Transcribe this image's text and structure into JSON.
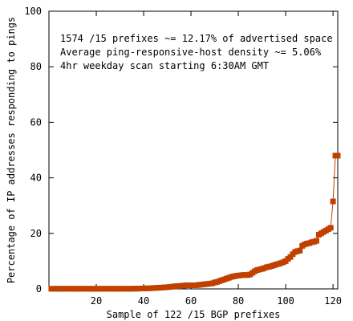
{
  "chart_data": {
    "type": "line",
    "title": "",
    "xlabel": "Sample of 122 /15 BGP prefixes",
    "ylabel": "Percentage of IP addresses responding to pings",
    "xlim": [
      0,
      122
    ],
    "ylim": [
      0,
      100
    ],
    "xticks": [
      "20",
      "40",
      "60",
      "80",
      "100",
      "120"
    ],
    "yticks": [
      "0",
      "20",
      "40",
      "60",
      "80",
      "100"
    ],
    "annotations": [
      "1574 /15 prefixes ~= 12.17% of advertised space",
      "Average ping-responsive-host density ~= 5.06%",
      "4hr weekday scan starting 6:30AM GMT"
    ],
    "series_color": "#c04000",
    "marker": "square",
    "grid": false,
    "x": [
      1,
      2,
      3,
      4,
      5,
      6,
      7,
      8,
      9,
      10,
      11,
      12,
      13,
      14,
      15,
      16,
      17,
      18,
      19,
      20,
      21,
      22,
      23,
      24,
      25,
      26,
      27,
      28,
      29,
      30,
      31,
      32,
      33,
      34,
      35,
      36,
      37,
      38,
      39,
      40,
      41,
      42,
      43,
      44,
      45,
      46,
      47,
      48,
      49,
      50,
      51,
      52,
      53,
      54,
      55,
      56,
      57,
      58,
      59,
      60,
      61,
      62,
      63,
      64,
      65,
      66,
      67,
      68,
      69,
      70,
      71,
      72,
      73,
      74,
      75,
      76,
      77,
      78,
      79,
      80,
      81,
      82,
      83,
      84,
      85,
      86,
      87,
      88,
      89,
      90,
      91,
      92,
      93,
      94,
      95,
      96,
      97,
      98,
      99,
      100,
      101,
      102,
      103,
      104,
      105,
      106,
      107,
      108,
      109,
      110,
      111,
      112,
      113,
      114,
      115,
      116,
      117,
      118,
      119,
      120,
      121,
      122
    ],
    "values": [
      0.05,
      0.05,
      0.05,
      0.05,
      0.05,
      0.05,
      0.05,
      0.05,
      0.05,
      0.05,
      0.05,
      0.05,
      0.05,
      0.05,
      0.05,
      0.05,
      0.05,
      0.05,
      0.05,
      0.05,
      0.05,
      0.05,
      0.05,
      0.05,
      0.05,
      0.05,
      0.05,
      0.05,
      0.05,
      0.05,
      0.05,
      0.05,
      0.05,
      0.05,
      0.05,
      0.1,
      0.1,
      0.1,
      0.15,
      0.15,
      0.2,
      0.2,
      0.25,
      0.3,
      0.35,
      0.4,
      0.45,
      0.5,
      0.55,
      0.6,
      0.7,
      0.8,
      0.9,
      1.0,
      1.0,
      1.1,
      1.2,
      1.3,
      1.3,
      1.3,
      1.3,
      1.3,
      1.4,
      1.5,
      1.6,
      1.7,
      1.8,
      1.9,
      2.0,
      2.3,
      2.5,
      2.8,
      3.1,
      3.4,
      3.7,
      4.0,
      4.3,
      4.5,
      4.7,
      4.8,
      4.9,
      5.0,
      5.0,
      5.0,
      5.2,
      5.8,
      6.4,
      6.8,
      7.0,
      7.2,
      7.5,
      7.8,
      8.0,
      8.2,
      8.5,
      8.8,
      9.0,
      9.3,
      9.6,
      10.0,
      10.8,
      11.5,
      12.5,
      13.3,
      13.6,
      13.8,
      15.5,
      16.0,
      16.3,
      16.5,
      16.8,
      17.0,
      17.3,
      19.5,
      20.0,
      20.5,
      21.0,
      21.5,
      22.0,
      31.5,
      48.0,
      48.0
    ]
  }
}
